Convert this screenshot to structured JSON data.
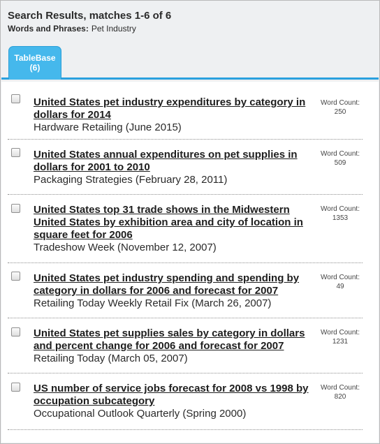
{
  "header": {
    "title": "Search Results, matches 1-6 of 6",
    "query_label": "Words and Phrases:",
    "query_value": "Pet Industry"
  },
  "tabs": [
    {
      "label": "TableBase",
      "count": "(6)"
    }
  ],
  "word_count_label": "Word Count:",
  "results": [
    {
      "title": "United States pet industry expenditures by category in dollars for 2014",
      "source": "Hardware Retailing (June 2015)",
      "word_count": "250"
    },
    {
      "title": "United States annual expenditures on pet supplies in dollars for 2001 to 2010",
      "source": "Packaging Strategies (February 28, 2011)",
      "word_count": "509"
    },
    {
      "title": "United States top 31 trade shows in the Midwestern United States by exhibition area and city of location in square feet for 2006",
      "source": "Tradeshow Week (November 12, 2007)",
      "word_count": "1353"
    },
    {
      "title": "United States pet industry spending and spending by category in dollars for 2006 and forecast for 2007",
      "source": "Retailing Today Weekly Retail Fix (March 26, 2007)",
      "word_count": "49"
    },
    {
      "title": "United States pet supplies sales by category in dollars and percent change for 2006 and forecast for 2007",
      "source": "Retailing Today (March 05, 2007)",
      "word_count": "1231"
    },
    {
      "title": "US number of service jobs forecast for 2008 vs 1998 by occupation subcategory",
      "source": "Occupational Outlook Quarterly (Spring 2000)",
      "word_count": "820"
    }
  ]
}
